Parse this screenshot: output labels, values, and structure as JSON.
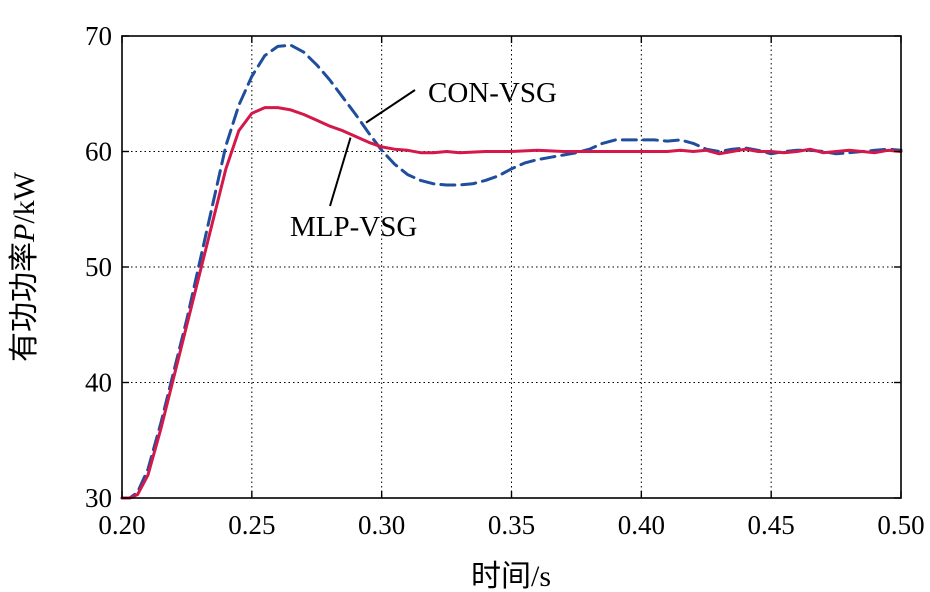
{
  "chart_data": {
    "type": "line",
    "title": "",
    "xlabel": "时间/s",
    "ylabel_parts": [
      "有功功率",
      "P",
      "/kW"
    ],
    "xlim": [
      0.2,
      0.5
    ],
    "ylim": [
      30,
      70
    ],
    "grid": true,
    "xticks": [
      0.2,
      0.25,
      0.3,
      0.35,
      0.4,
      0.45,
      0.5
    ],
    "xtick_labels": [
      "0.20",
      "0.25",
      "0.30",
      "0.35",
      "0.40",
      "0.45",
      "0.50"
    ],
    "yticks": [
      30,
      40,
      50,
      60,
      70
    ],
    "ytick_labels": [
      "30",
      "40",
      "50",
      "60",
      "70"
    ],
    "series": [
      {
        "name": "CON-VSG",
        "color": "#1f4e9c",
        "dash": "dashed",
        "x": [
          0.2,
          0.203,
          0.206,
          0.21,
          0.215,
          0.22,
          0.225,
          0.23,
          0.235,
          0.24,
          0.245,
          0.25,
          0.255,
          0.26,
          0.265,
          0.27,
          0.275,
          0.28,
          0.285,
          0.29,
          0.295,
          0.3,
          0.305,
          0.31,
          0.315,
          0.32,
          0.325,
          0.33,
          0.335,
          0.34,
          0.345,
          0.35,
          0.355,
          0.36,
          0.365,
          0.37,
          0.375,
          0.38,
          0.385,
          0.39,
          0.395,
          0.4,
          0.405,
          0.41,
          0.415,
          0.42,
          0.425,
          0.43,
          0.435,
          0.44,
          0.445,
          0.45,
          0.455,
          0.46,
          0.465,
          0.47,
          0.475,
          0.48,
          0.485,
          0.49,
          0.495,
          0.5
        ],
        "y": [
          30,
          30,
          30.5,
          32.5,
          36.5,
          41,
          45.5,
          50.5,
          55.5,
          60.5,
          64,
          66.5,
          68.3,
          69.1,
          69.2,
          68.6,
          67.5,
          66.2,
          64.7,
          63.2,
          61.6,
          60.1,
          58.9,
          58,
          57.5,
          57.2,
          57.1,
          57.1,
          57.2,
          57.5,
          57.9,
          58.5,
          59,
          59.3,
          59.5,
          59.7,
          59.9,
          60.2,
          60.7,
          61,
          61,
          61,
          61,
          60.9,
          61,
          60.7,
          60.2,
          60,
          60.2,
          60.3,
          60.1,
          59.8,
          60,
          60.1,
          60.1,
          60,
          59.8,
          59.9,
          60,
          60.1,
          60.2,
          60.1
        ]
      },
      {
        "name": "MLP-VSG",
        "color": "#d4184a",
        "dash": "solid",
        "x": [
          0.2,
          0.203,
          0.206,
          0.21,
          0.215,
          0.22,
          0.225,
          0.23,
          0.235,
          0.24,
          0.245,
          0.25,
          0.255,
          0.26,
          0.265,
          0.27,
          0.275,
          0.28,
          0.285,
          0.29,
          0.295,
          0.3,
          0.305,
          0.31,
          0.315,
          0.32,
          0.325,
          0.33,
          0.34,
          0.35,
          0.36,
          0.37,
          0.38,
          0.39,
          0.4,
          0.41,
          0.415,
          0.42,
          0.425,
          0.43,
          0.435,
          0.44,
          0.445,
          0.45,
          0.455,
          0.46,
          0.465,
          0.47,
          0.475,
          0.48,
          0.485,
          0.49,
          0.495,
          0.5
        ],
        "y": [
          30,
          30,
          30.3,
          32,
          36,
          40.5,
          45,
          49.5,
          54,
          58.5,
          61.8,
          63.3,
          63.8,
          63.8,
          63.6,
          63.2,
          62.7,
          62.2,
          61.8,
          61.3,
          60.8,
          60.4,
          60.2,
          60.1,
          59.9,
          59.9,
          60,
          59.9,
          60,
          60,
          60.1,
          60,
          60,
          60,
          60,
          60,
          60.1,
          60,
          60.1,
          59.8,
          60,
          60.2,
          60,
          60,
          59.9,
          60,
          60.2,
          59.9,
          60,
          60.1,
          60,
          59.9,
          60.1,
          60
        ]
      }
    ],
    "annotations": [
      {
        "text": "CON-VSG",
        "series": "CON-VSG",
        "arrow_to": [
          0.294,
          62.5
        ]
      },
      {
        "text": "MLP-VSG",
        "series": "MLP-VSG",
        "arrow_to": [
          0.288,
          61.2
        ]
      }
    ]
  }
}
